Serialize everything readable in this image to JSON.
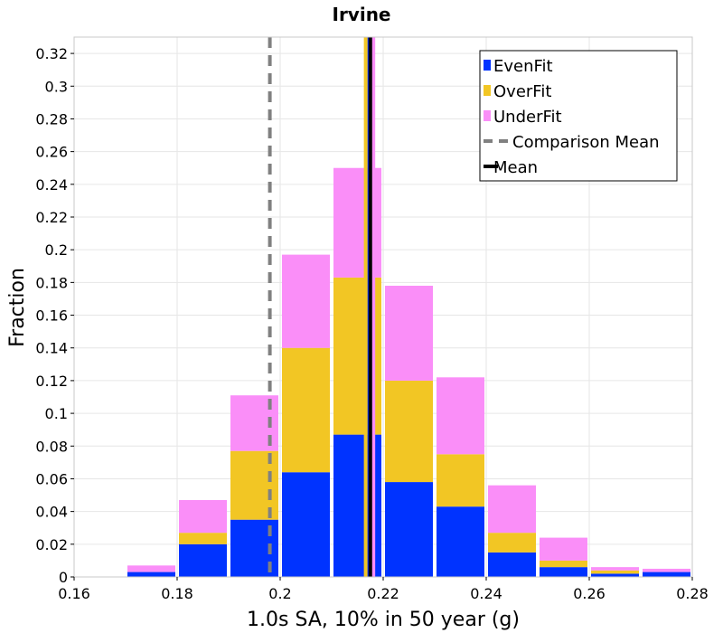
{
  "chart_data": {
    "type": "bar",
    "title": "Irvine",
    "xlabel": "1.0s SA, 10% in 50 year (g)",
    "ylabel": "Fraction",
    "xlim": [
      0.16,
      0.28
    ],
    "ylim": [
      0,
      0.33
    ],
    "x_ticks": [
      "0.16",
      "0.18",
      "0.2",
      "0.22",
      "0.24",
      "0.26",
      "0.28"
    ],
    "y_ticks": [
      "0",
      "0.02",
      "0.04",
      "0.06",
      "0.08",
      "0.1",
      "0.12",
      "0.14",
      "0.16",
      "0.18",
      "0.2",
      "0.22",
      "0.24",
      "0.26",
      "0.28",
      "0.3",
      "0.32"
    ],
    "stacked": true,
    "bin_width": 0.01,
    "bin_centers": [
      0.175,
      0.185,
      0.195,
      0.205,
      0.215,
      0.225,
      0.235,
      0.245,
      0.255,
      0.265,
      0.275
    ],
    "series": [
      {
        "name": "EvenFit",
        "color": "#0033ff",
        "values": [
          0.003,
          0.02,
          0.035,
          0.064,
          0.087,
          0.058,
          0.043,
          0.015,
          0.006,
          0.002,
          0.003
        ]
      },
      {
        "name": "OverFit",
        "color": "#f2c624",
        "values": [
          0.0,
          0.007,
          0.042,
          0.076,
          0.096,
          0.062,
          0.032,
          0.012,
          0.004,
          0.002,
          0.0
        ]
      },
      {
        "name": "UnderFit",
        "color": "#fa8ef8",
        "values": [
          0.004,
          0.02,
          0.034,
          0.057,
          0.067,
          0.058,
          0.047,
          0.029,
          0.014,
          0.002,
          0.002
        ]
      }
    ],
    "mean_lines": [
      {
        "label": "EvenFit",
        "x": 0.2173,
        "color": "#0033ff"
      },
      {
        "label": "OverFit",
        "x": 0.2166,
        "color": "#f2c624"
      },
      {
        "label": "UnderFit",
        "x": 0.2181,
        "color": "#fa8ef8"
      }
    ],
    "comparison_mean": {
      "label": "Comparison Mean",
      "x": 0.198,
      "color": "#808080",
      "style": "dashed"
    },
    "mean": {
      "label": "Mean",
      "x": 0.2175,
      "color": "#000000"
    },
    "legend": {
      "position": "top-right",
      "entries": [
        {
          "label": "EvenFit",
          "color": "#0033ff",
          "kind": "box"
        },
        {
          "label": "OverFit",
          "color": "#f2c624",
          "kind": "box"
        },
        {
          "label": "UnderFit",
          "color": "#fa8ef8",
          "kind": "box"
        },
        {
          "label": "Comparison Mean",
          "color": "#808080",
          "kind": "dashed-line"
        },
        {
          "label": "Mean",
          "color": "#000000",
          "kind": "line"
        }
      ]
    },
    "grid": true
  }
}
